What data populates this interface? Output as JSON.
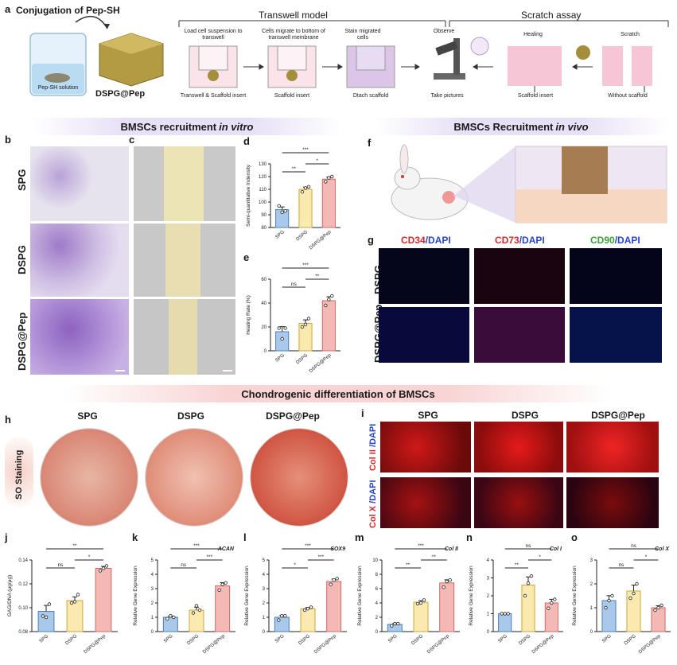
{
  "panels": {
    "a": {
      "label": "a",
      "title": "Conjugation of Pep-SH",
      "solution": "Pep-SH solution",
      "product": "DSPG@Pep",
      "transwell_title": "Transwell model",
      "scratch_title": "Scratch assay",
      "steps": [
        "Load cell suspension to transwell",
        "Cells migrate to bottom of transwell membrane",
        "Stain migrated cells",
        "Observe"
      ],
      "captions": [
        "Transwell & Scaffold insert",
        "Scaffold insert",
        "Dtach scaffold",
        "Take pictures",
        "Scaffold insert",
        "Without scaffold"
      ],
      "healing": "Healing",
      "scratch": "Scratch"
    },
    "b": {
      "label": "b"
    },
    "c": {
      "label": "c"
    },
    "f": {
      "label": "f"
    },
    "g": {
      "label": "g",
      "cols": [
        {
          "a": "CD34",
          "b": "/DAPI",
          "color": "#d42a2a"
        },
        {
          "a": "CD73",
          "b": "/DAPI",
          "color": "#d42a2a"
        },
        {
          "a": "CD90",
          "b": "/DAPI",
          "color": "#3aa03a"
        }
      ],
      "rows": [
        "DSPG",
        "DSPG@Pep"
      ]
    },
    "h": {
      "label": "h",
      "cols": [
        "SPG",
        "DSPG",
        "DSPG@Pep"
      ],
      "row": "SO Staining"
    },
    "i": {
      "label": "i",
      "cols": [
        "SPG",
        "DSPG",
        "DSPG@Pep"
      ],
      "rows": [
        {
          "a": "Col II",
          "b": " /DAPI"
        },
        {
          "a": "Col X",
          "b": " /DAPI"
        }
      ]
    }
  },
  "banners": {
    "recruit_vitro": "BMSCs recruitment ",
    "recruit_vitro_em": "in vitro",
    "recruit_vivo": "BMSCs Recruitment ",
    "recruit_vivo_em": "in vivo",
    "chondro": "Chondrogenic differentiation of BMSCs"
  },
  "rows_bc": [
    "SPG",
    "DSPG",
    "DSPG@Pep"
  ],
  "colors": {
    "spg": "#a9c8ea",
    "dspg": "#fbeab0",
    "pep": "#f4b8b5"
  },
  "chart_data": [
    {
      "id": "d",
      "type": "bar",
      "ylabel": "Semi-quantitative Indensity",
      "categories": [
        "SPG",
        "DSPG",
        "DSPG@Pep"
      ],
      "values": [
        94,
        110,
        118
      ],
      "points": [
        [
          97,
          92,
          93
        ],
        [
          108,
          111,
          112
        ],
        [
          116,
          119,
          120
        ]
      ],
      "ylim": [
        80,
        130
      ],
      "yticks": [
        80,
        90,
        100,
        110,
        120,
        130
      ],
      "sig": [
        {
          "a": 0,
          "b": 1,
          "t": "**"
        },
        {
          "a": 1,
          "b": 2,
          "t": "*"
        },
        {
          "a": 0,
          "b": 2,
          "t": "***"
        }
      ]
    },
    {
      "id": "e",
      "type": "bar",
      "ylabel": "Healing Rate (%)",
      "categories": [
        "SPG",
        "DSPG",
        "DSPG@Pep"
      ],
      "values": [
        16,
        23,
        42
      ],
      "points": [
        [
          19,
          10,
          19
        ],
        [
          20,
          22,
          27
        ],
        [
          38,
          43,
          46
        ]
      ],
      "ylim": [
        0,
        60
      ],
      "yticks": [
        0,
        20,
        40,
        60
      ],
      "sig": [
        {
          "a": 0,
          "b": 1,
          "t": "ns"
        },
        {
          "a": 1,
          "b": 2,
          "t": "**"
        },
        {
          "a": 0,
          "b": 2,
          "t": "***"
        }
      ]
    },
    {
      "id": "j",
      "type": "bar",
      "ylabel": "GAG/DNA (μg/μg)",
      "categories": [
        "SPG",
        "DSPG",
        "DSPG@Pep"
      ],
      "values": [
        0.097,
        0.106,
        0.133
      ],
      "points": [
        [
          0.093,
          0.092,
          0.103
        ],
        [
          0.104,
          0.105,
          0.111
        ],
        [
          0.131,
          0.133,
          0.135
        ]
      ],
      "ylim": [
        0.08,
        0.14
      ],
      "yticks": [
        0.08,
        0.1,
        0.12,
        0.14
      ],
      "decimals": 2,
      "gene": "",
      "sig": [
        {
          "a": 0,
          "b": 1,
          "t": "ns"
        },
        {
          "a": 1,
          "b": 2,
          "t": "*"
        },
        {
          "a": 0,
          "b": 2,
          "t": "**"
        }
      ]
    },
    {
      "id": "k",
      "type": "bar",
      "ylabel": "Relative Gene Expression",
      "gene": "ACAN",
      "categories": [
        "SPG",
        "DSPG",
        "DSPG@Pep"
      ],
      "values": [
        1.0,
        1.5,
        3.2
      ],
      "points": [
        [
          0.9,
          1.1,
          1.0
        ],
        [
          1.3,
          1.8,
          1.5
        ],
        [
          2.9,
          3.3,
          3.4
        ]
      ],
      "ylim": [
        0,
        5
      ],
      "yticks": [
        0,
        1,
        2,
        3,
        4,
        5
      ],
      "sig": [
        {
          "a": 0,
          "b": 1,
          "t": "ns"
        },
        {
          "a": 1,
          "b": 2,
          "t": "***"
        },
        {
          "a": 0,
          "b": 2,
          "t": "***"
        }
      ]
    },
    {
      "id": "l",
      "type": "bar",
      "ylabel": "Relative Gene Expression",
      "gene": "SOX9",
      "categories": [
        "SPG",
        "DSPG",
        "DSPG@Pep"
      ],
      "values": [
        1.0,
        1.6,
        3.5
      ],
      "points": [
        [
          0.8,
          1.1,
          1.1
        ],
        [
          1.5,
          1.6,
          1.7
        ],
        [
          3.3,
          3.6,
          3.7
        ]
      ],
      "ylim": [
        0,
        5
      ],
      "yticks": [
        0,
        1,
        2,
        3,
        4,
        5
      ],
      "sig": [
        {
          "a": 0,
          "b": 1,
          "t": "*"
        },
        {
          "a": 1,
          "b": 2,
          "t": "***"
        },
        {
          "a": 0,
          "b": 2,
          "t": "***"
        }
      ]
    },
    {
      "id": "m",
      "type": "bar",
      "ylabel": "Relative Gene Expression",
      "gene": "Col II",
      "categories": [
        "SPG",
        "DSPG",
        "DSPG@Pep"
      ],
      "values": [
        1.0,
        4.1,
        6.8
      ],
      "points": [
        [
          0.8,
          1.1,
          1.1
        ],
        [
          3.9,
          4.0,
          4.4
        ],
        [
          6.2,
          7.0,
          7.2
        ]
      ],
      "ylim": [
        0,
        10
      ],
      "yticks": [
        0,
        2,
        4,
        6,
        8,
        10
      ],
      "sig": [
        {
          "a": 0,
          "b": 1,
          "t": "**"
        },
        {
          "a": 1,
          "b": 2,
          "t": "**"
        },
        {
          "a": 0,
          "b": 2,
          "t": "***"
        }
      ]
    },
    {
      "id": "n",
      "type": "bar",
      "ylabel": "Relative Gene Expression",
      "gene": "Col I",
      "categories": [
        "SPG",
        "DSPG",
        "DSPG@Pep"
      ],
      "values": [
        1.0,
        2.6,
        1.6
      ],
      "points": [
        [
          1.0,
          1.0,
          1.0
        ],
        [
          2.0,
          2.7,
          3.1
        ],
        [
          1.3,
          1.6,
          1.8
        ]
      ],
      "ylim": [
        0,
        4
      ],
      "yticks": [
        0,
        1,
        2,
        3,
        4
      ],
      "sig": [
        {
          "a": 0,
          "b": 1,
          "t": "**"
        },
        {
          "a": 1,
          "b": 2,
          "t": "*"
        },
        {
          "a": 0,
          "b": 2,
          "t": "ns"
        }
      ]
    },
    {
      "id": "o",
      "type": "bar",
      "ylabel": "Relative Gene Expression",
      "gene": "Col X",
      "categories": [
        "SPG",
        "DSPG",
        "DSPG@Pep"
      ],
      "values": [
        1.3,
        1.7,
        1.0
      ],
      "points": [
        [
          1.0,
          1.3,
          1.5
        ],
        [
          1.4,
          1.6,
          2.0
        ],
        [
          0.9,
          1.0,
          1.1
        ]
      ],
      "ylim": [
        0,
        3
      ],
      "yticks": [
        0,
        1,
        2,
        3
      ],
      "sig": [
        {
          "a": 0,
          "b": 1,
          "t": "ns"
        },
        {
          "a": 1,
          "b": 2,
          "t": "*"
        },
        {
          "a": 0,
          "b": 2,
          "t": "ns"
        }
      ]
    }
  ]
}
